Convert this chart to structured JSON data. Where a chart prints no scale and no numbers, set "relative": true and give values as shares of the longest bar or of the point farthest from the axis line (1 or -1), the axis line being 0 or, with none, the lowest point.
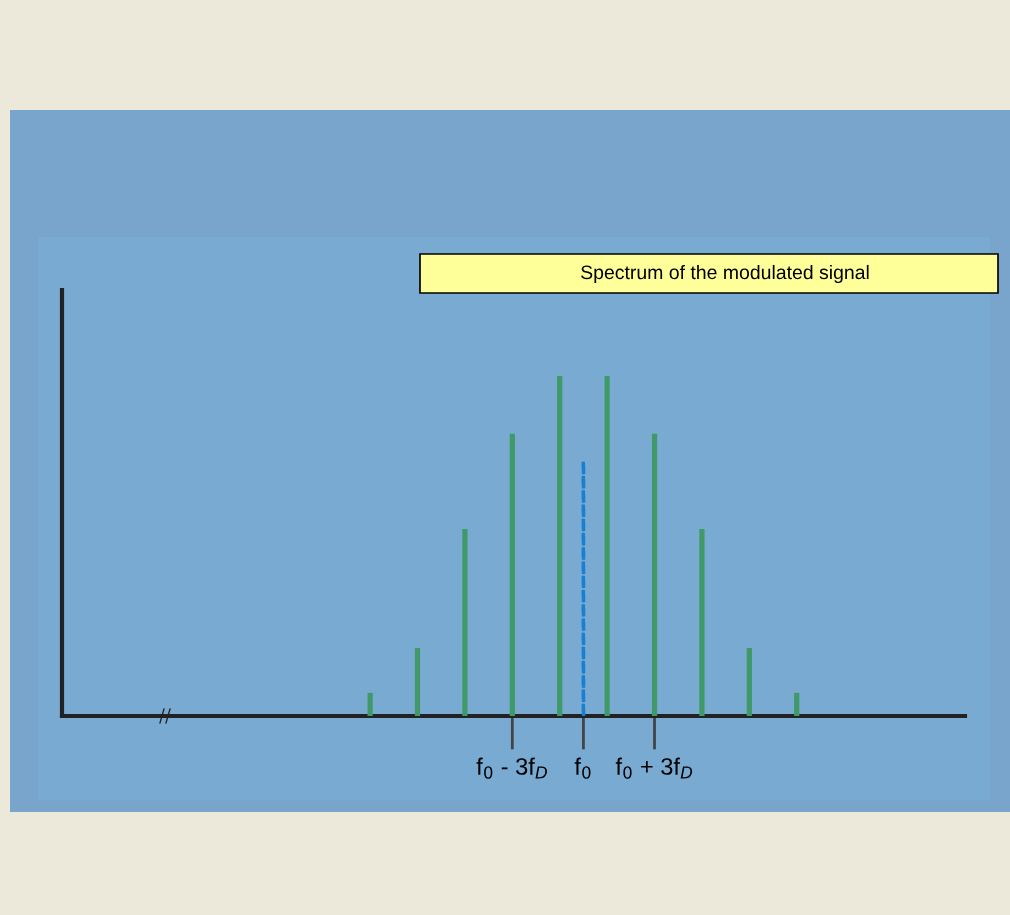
{
  "chart_data": {
    "type": "bar",
    "title": "Spectrum of the modulated signal",
    "relative": true,
    "categories": [
      null,
      null,
      null,
      null,
      null,
      null,
      null,
      null,
      null,
      null,
      null,
      null,
      null,
      null,
      null,
      null,
      null,
      null,
      null,
      "f$_{0}$ - 3f$_{D}$",
      null,
      null,
      "f$_{0}$",
      null,
      null,
      "f$_{0}$ + 3f$_{D}$",
      null,
      null,
      null,
      null,
      null,
      null,
      null,
      null,
      null,
      null,
      null,
      null,
      null
    ],
    "tick_labels": "x",
    "grid": false,
    "legend": false,
    "series": [
      {
        "color": "#3f9a68",
        "values": [
          null,
          null,
          null,
          null,
          null,
          null,
          null,
          null,
          null,
          null,
          null,
          null,
          null,
          0.068,
          null,
          0.2,
          null,
          0.55,
          null,
          0.83,
          null,
          1,
          null,
          1,
          null,
          0.83,
          null,
          0.55,
          null,
          0.2,
          null,
          0.068,
          null,
          null,
          null,
          null,
          null,
          null,
          null
        ]
      },
      {
        "color": "#1a7fd4",
        "line_style": "dashed",
        "values": [
          null,
          null,
          null,
          null,
          null,
          null,
          null,
          null,
          null,
          null,
          null,
          null,
          null,
          null,
          null,
          null,
          null,
          null,
          null,
          null,
          null,
          null,
          0.75,
          null,
          null,
          null,
          null,
          null,
          null,
          null,
          null,
          null,
          null,
          null,
          null,
          null,
          null,
          null,
          null
        ]
      }
    ]
  }
}
